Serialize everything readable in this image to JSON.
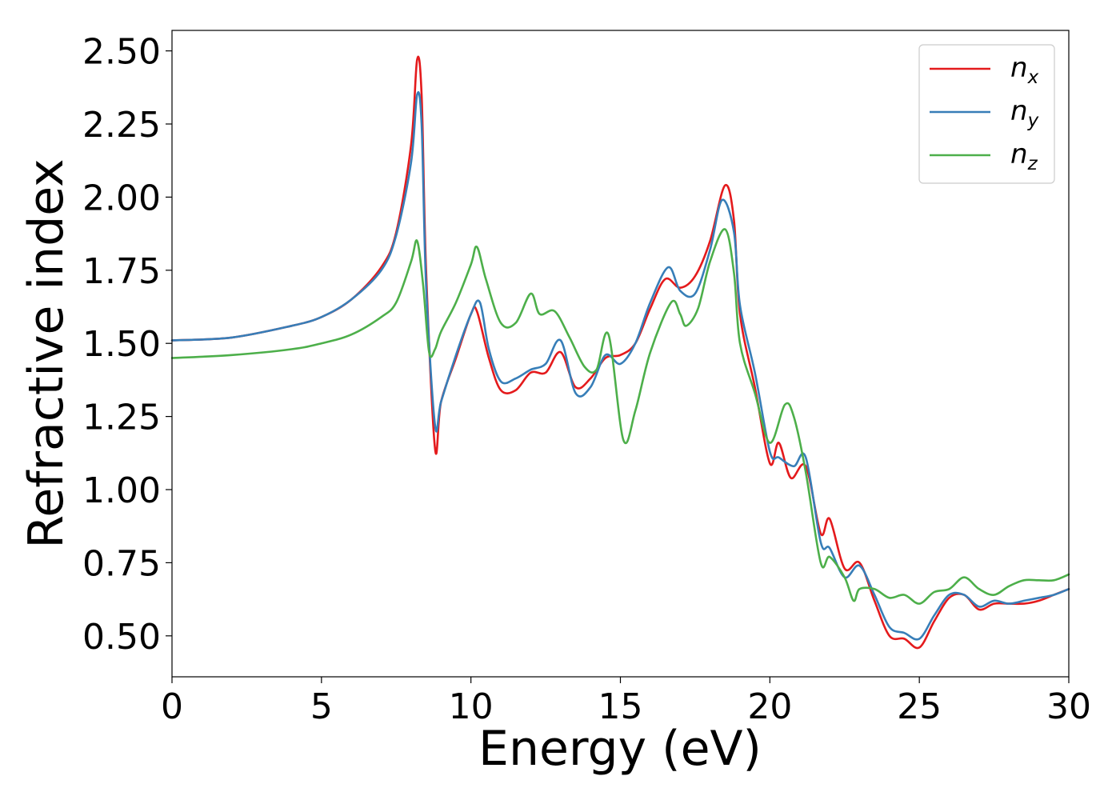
{
  "chart_data": {
    "type": "line",
    "title": "",
    "xlabel": "Energy (eV)",
    "ylabel": "Refractive index",
    "xlim": [
      0,
      30
    ],
    "ylim": [
      0.36,
      2.57
    ],
    "x_ticks": [
      "0",
      "5",
      "10",
      "15",
      "20",
      "25",
      "30"
    ],
    "y_ticks": [
      "0.50",
      "0.75",
      "1.00",
      "1.25",
      "1.50",
      "1.75",
      "2.00",
      "2.25",
      "2.50"
    ],
    "grid": false,
    "legend_position": "top-right",
    "series": [
      {
        "name": "n_x",
        "label_base": "n",
        "label_sub": "x",
        "color": "#e41a1c",
        "points": [
          [
            0,
            1.51
          ],
          [
            2,
            1.52
          ],
          [
            4,
            1.56
          ],
          [
            5,
            1.59
          ],
          [
            6,
            1.65
          ],
          [
            7,
            1.76
          ],
          [
            7.5,
            1.88
          ],
          [
            8,
            2.18
          ],
          [
            8.2,
            2.47
          ],
          [
            8.35,
            2.35
          ],
          [
            8.5,
            1.75
          ],
          [
            8.8,
            1.14
          ],
          [
            9.0,
            1.3
          ],
          [
            9.5,
            1.45
          ],
          [
            10,
            1.6
          ],
          [
            10.2,
            1.61
          ],
          [
            10.6,
            1.45
          ],
          [
            11,
            1.34
          ],
          [
            11.5,
            1.34
          ],
          [
            12,
            1.4
          ],
          [
            12.5,
            1.4
          ],
          [
            13,
            1.47
          ],
          [
            13.5,
            1.35
          ],
          [
            14,
            1.38
          ],
          [
            14.5,
            1.45
          ],
          [
            15,
            1.46
          ],
          [
            15.5,
            1.5
          ],
          [
            16,
            1.62
          ],
          [
            16.5,
            1.72
          ],
          [
            17,
            1.69
          ],
          [
            17.5,
            1.73
          ],
          [
            18,
            1.85
          ],
          [
            18.5,
            2.04
          ],
          [
            18.8,
            1.92
          ],
          [
            19,
            1.6
          ],
          [
            19.5,
            1.35
          ],
          [
            20,
            1.09
          ],
          [
            20.3,
            1.16
          ],
          [
            20.7,
            1.04
          ],
          [
            21.2,
            1.08
          ],
          [
            21.7,
            0.85
          ],
          [
            22,
            0.9
          ],
          [
            22.5,
            0.73
          ],
          [
            23,
            0.75
          ],
          [
            23.5,
            0.62
          ],
          [
            24,
            0.5
          ],
          [
            24.5,
            0.49
          ],
          [
            25,
            0.46
          ],
          [
            25.5,
            0.55
          ],
          [
            26,
            0.63
          ],
          [
            26.5,
            0.64
          ],
          [
            27,
            0.59
          ],
          [
            27.5,
            0.61
          ],
          [
            28,
            0.61
          ],
          [
            28.5,
            0.61
          ],
          [
            29,
            0.62
          ],
          [
            29.5,
            0.64
          ],
          [
            30,
            0.66
          ]
        ]
      },
      {
        "name": "n_y",
        "label_base": "n",
        "label_sub": "y",
        "color": "#377eb8",
        "points": [
          [
            0,
            1.51
          ],
          [
            2,
            1.52
          ],
          [
            4,
            1.56
          ],
          [
            5,
            1.59
          ],
          [
            6,
            1.65
          ],
          [
            7,
            1.75
          ],
          [
            7.5,
            1.87
          ],
          [
            8,
            2.12
          ],
          [
            8.2,
            2.35
          ],
          [
            8.35,
            2.25
          ],
          [
            8.5,
            1.7
          ],
          [
            8.8,
            1.22
          ],
          [
            9.0,
            1.3
          ],
          [
            9.5,
            1.46
          ],
          [
            10,
            1.6
          ],
          [
            10.3,
            1.64
          ],
          [
            10.6,
            1.48
          ],
          [
            11,
            1.37
          ],
          [
            11.5,
            1.38
          ],
          [
            12,
            1.41
          ],
          [
            12.5,
            1.43
          ],
          [
            13,
            1.51
          ],
          [
            13.5,
            1.33
          ],
          [
            14,
            1.35
          ],
          [
            14.5,
            1.46
          ],
          [
            15,
            1.43
          ],
          [
            15.5,
            1.5
          ],
          [
            16,
            1.64
          ],
          [
            16.6,
            1.76
          ],
          [
            17,
            1.68
          ],
          [
            17.5,
            1.67
          ],
          [
            18,
            1.82
          ],
          [
            18.4,
            1.99
          ],
          [
            18.8,
            1.88
          ],
          [
            19,
            1.63
          ],
          [
            19.5,
            1.4
          ],
          [
            20,
            1.13
          ],
          [
            20.3,
            1.11
          ],
          [
            20.8,
            1.08
          ],
          [
            21.2,
            1.11
          ],
          [
            21.7,
            0.82
          ],
          [
            22,
            0.8
          ],
          [
            22.5,
            0.7
          ],
          [
            23,
            0.74
          ],
          [
            23.5,
            0.64
          ],
          [
            24,
            0.53
          ],
          [
            24.5,
            0.51
          ],
          [
            25,
            0.49
          ],
          [
            25.5,
            0.57
          ],
          [
            26,
            0.64
          ],
          [
            26.5,
            0.64
          ],
          [
            27,
            0.6
          ],
          [
            27.5,
            0.62
          ],
          [
            28,
            0.61
          ],
          [
            28.5,
            0.62
          ],
          [
            29,
            0.63
          ],
          [
            29.5,
            0.64
          ],
          [
            30,
            0.66
          ]
        ]
      },
      {
        "name": "n_z",
        "label_base": "n",
        "label_sub": "z",
        "color": "#4daf4a",
        "points": [
          [
            0,
            1.45
          ],
          [
            2,
            1.46
          ],
          [
            4,
            1.48
          ],
          [
            5,
            1.5
          ],
          [
            6,
            1.53
          ],
          [
            7,
            1.59
          ],
          [
            7.5,
            1.64
          ],
          [
            8,
            1.78
          ],
          [
            8.2,
            1.85
          ],
          [
            8.4,
            1.7
          ],
          [
            8.6,
            1.47
          ],
          [
            8.8,
            1.48
          ],
          [
            9.0,
            1.54
          ],
          [
            9.5,
            1.64
          ],
          [
            10,
            1.77
          ],
          [
            10.2,
            1.83
          ],
          [
            10.5,
            1.72
          ],
          [
            11,
            1.57
          ],
          [
            11.5,
            1.57
          ],
          [
            12,
            1.67
          ],
          [
            12.3,
            1.6
          ],
          [
            12.8,
            1.61
          ],
          [
            13.3,
            1.52
          ],
          [
            13.8,
            1.42
          ],
          [
            14.2,
            1.41
          ],
          [
            14.6,
            1.53
          ],
          [
            15.1,
            1.17
          ],
          [
            15.5,
            1.27
          ],
          [
            16,
            1.47
          ],
          [
            16.7,
            1.64
          ],
          [
            17,
            1.6
          ],
          [
            17.2,
            1.56
          ],
          [
            17.6,
            1.62
          ],
          [
            18,
            1.78
          ],
          [
            18.5,
            1.89
          ],
          [
            18.8,
            1.74
          ],
          [
            19,
            1.5
          ],
          [
            19.5,
            1.33
          ],
          [
            20,
            1.16
          ],
          [
            20.5,
            1.29
          ],
          [
            20.8,
            1.25
          ],
          [
            21.2,
            1.06
          ],
          [
            21.7,
            0.75
          ],
          [
            22,
            0.77
          ],
          [
            22.5,
            0.7
          ],
          [
            22.8,
            0.62
          ],
          [
            23,
            0.66
          ],
          [
            23.5,
            0.66
          ],
          [
            24,
            0.63
          ],
          [
            24.5,
            0.64
          ],
          [
            25,
            0.61
          ],
          [
            25.5,
            0.65
          ],
          [
            26,
            0.66
          ],
          [
            26.5,
            0.7
          ],
          [
            27,
            0.66
          ],
          [
            27.5,
            0.64
          ],
          [
            28,
            0.67
          ],
          [
            28.5,
            0.69
          ],
          [
            29,
            0.69
          ],
          [
            29.5,
            0.69
          ],
          [
            30,
            0.71
          ]
        ]
      }
    ]
  }
}
